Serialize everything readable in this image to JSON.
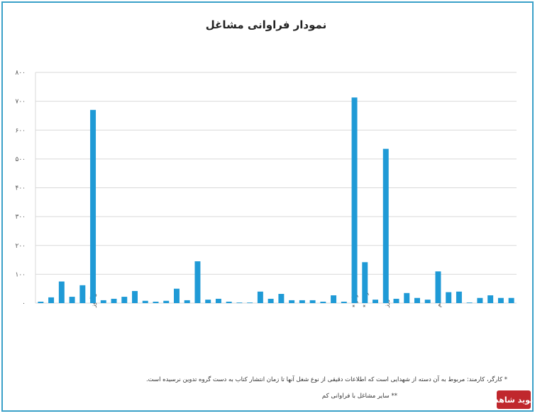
{
  "chart_data": {
    "type": "bar",
    "title": "نمودار فراوانی مشاغل",
    "categories": [
      null,
      null,
      null,
      null,
      null,
      "دانش‌آموز",
      null,
      null,
      null,
      null,
      null,
      null,
      null,
      null,
      null,
      null,
      null,
      null,
      null,
      null,
      null,
      null,
      null,
      null,
      null,
      null,
      null,
      null,
      null,
      null,
      "کارگر *",
      "کارمند *",
      null,
      "کشاورز",
      null,
      null,
      null,
      null,
      "معلم",
      null,
      null,
      null,
      null,
      null,
      null,
      null
    ],
    "values": [
      5,
      20,
      75,
      22,
      62,
      670,
      10,
      15,
      22,
      42,
      8,
      5,
      8,
      50,
      10,
      145,
      12,
      15,
      5,
      2,
      2,
      40,
      15,
      32,
      10,
      10,
      10,
      5,
      27,
      5,
      713,
      142,
      12,
      535,
      15,
      35,
      18,
      12,
      110,
      38,
      40,
      2,
      18,
      27,
      18,
      18
    ],
    "color": "#1f9ad6",
    "ylim": [
      0,
      800
    ],
    "yticks": [
      {
        "value": 0,
        "label": "۰"
      },
      {
        "value": 100,
        "label": "۱۰۰"
      },
      {
        "value": 200,
        "label": "۲۰۰"
      },
      {
        "value": 300,
        "label": "۳۰۰"
      },
      {
        "value": 400,
        "label": "۴۰۰"
      },
      {
        "value": 500,
        "label": "۵۰۰"
      },
      {
        "value": 600,
        "label": "۶۰۰"
      },
      {
        "value": 700,
        "label": "۷۰۰"
      },
      {
        "value": 800,
        "label": "۸۰۰"
      }
    ],
    "grid": true,
    "notes": [
      "* کارگر، کارمند: مربوط به آن دسته از شهدایی است که اطلاعات دقیقی از نوع شغل آنها تا زمان انتشار کتاب به دست گروه تدوین نرسیده است.",
      "** سایر مشاغل با فراوانی کم"
    ],
    "logo": "نوید شاهد"
  }
}
